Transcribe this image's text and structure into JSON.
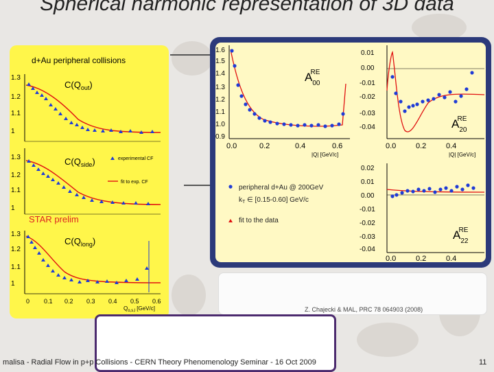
{
  "slide": {
    "title": "Spherical harmonic representation of 3D data",
    "left_figure_label": "d+Au peripheral collisions",
    "star_label": "STAR prelim",
    "citation": "Z. Chajecki & MAL, PRC 78 064903 (2008)",
    "footer": "malisa - Radial Flow in p+p Collisions - CERN Theory Phenomenology Seminar - 16 Oct 2009",
    "page_number": "11"
  },
  "left_plots": {
    "panels": [
      {
        "label": "C(Q",
        "sub": "out",
        "ticks": [
          "1.3",
          "1.2",
          "1.1",
          "1"
        ]
      },
      {
        "label": "C(Q",
        "sub": "side",
        "ticks": [
          "1.3",
          "1.2",
          "1.1",
          "1"
        ]
      },
      {
        "label": "C(Q",
        "sub": "long",
        "ticks": [
          "1.3",
          "1.2",
          "1.1",
          "1"
        ]
      }
    ],
    "legend_exp": "experimental CF",
    "legend_fit": "fit to exp. CF",
    "x_ticks": [
      "0",
      "0.1",
      "0.2",
      "0.3",
      "0.4",
      "0.5",
      "0.6"
    ],
    "x_unit_q": "Q",
    "x_unit_sub": "o,s,l",
    "x_unit": "[GeV/c]"
  },
  "right_plots": {
    "a00_label": "A",
    "a00_sub": "00",
    "a00_sup": "RE",
    "a00_yticks": [
      "1.6",
      "1.5",
      "1.4",
      "1.3",
      "1.2",
      "1.1",
      "1.0",
      "0.9"
    ],
    "a20_label": "A",
    "a20_sub": "20",
    "a20_sup": "RE",
    "a20_yticks": [
      "0.01",
      "0.00",
      "-0.01",
      "-0.02",
      "-0.03",
      "-0.04"
    ],
    "a22_label": "A",
    "a22_sub": "22",
    "a22_sup": "RE",
    "a22_yticks": [
      "0.02",
      "0.01",
      "0.00",
      "-0.01",
      "-0.02",
      "-0.03",
      "-0.04"
    ],
    "x_ticks": [
      "0.0",
      "0.2",
      "0.4",
      "0.6"
    ],
    "x_unit": "|Q| [GeV/c]",
    "legend_line1": "peripheral d+Au @ 200GeV",
    "legend_line2": "k",
    "legend_line2_sub": "T",
    "legend_line2_rest": " ∈ [0.15-0.60] GeV/c",
    "legend_fit": "fit to the data"
  },
  "colors": {
    "points": "#1f3bd6",
    "fit": "#e01010",
    "panel_bg": "#fff64a",
    "frame": "#2c3a7a"
  }
}
